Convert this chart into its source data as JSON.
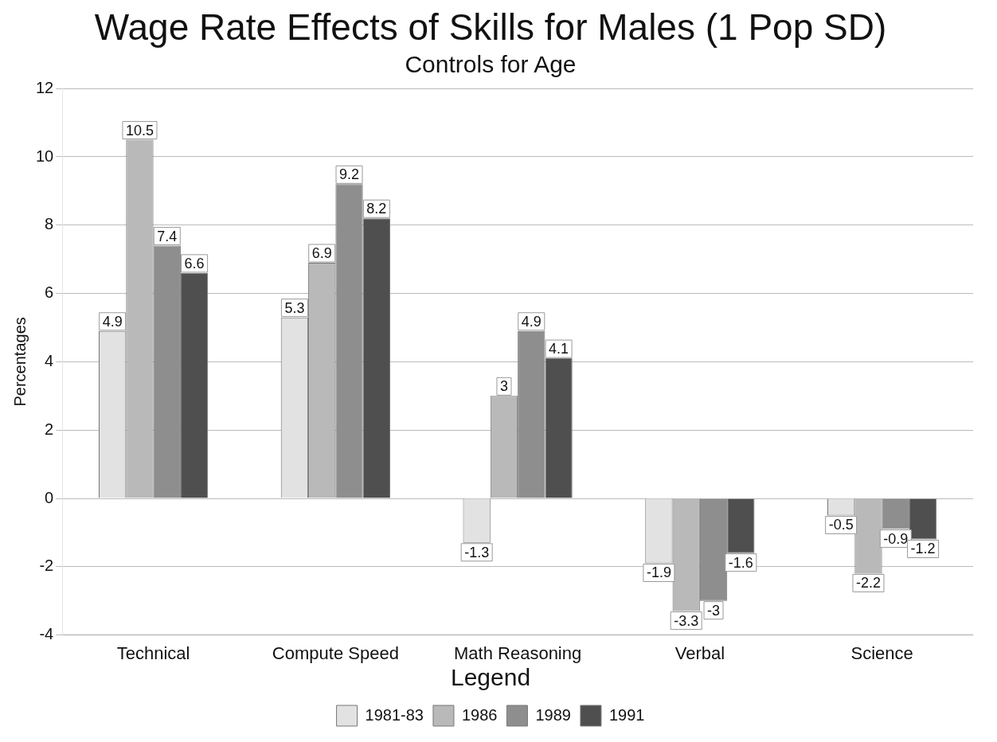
{
  "chart_data": {
    "type": "bar",
    "title": "Wage Rate Effects of Skills for Males (1 Pop SD)",
    "subtitle": "Controls for Age",
    "ylabel": "Percentages",
    "categories": [
      "Technical",
      "Compute Speed",
      "Math Reasoning",
      "Verbal",
      "Science"
    ],
    "series": [
      {
        "name": "1981-83",
        "color": "#e2e2e2",
        "values": [
          4.9,
          5.3,
          -1.3,
          -1.9,
          -0.5
        ]
      },
      {
        "name": "1986",
        "color": "#b9b9b9",
        "values": [
          10.5,
          6.9,
          3,
          -3.3,
          -2.2
        ]
      },
      {
        "name": "1989",
        "color": "#8e8e8e",
        "values": [
          7.4,
          9.2,
          4.9,
          -3,
          -0.9
        ]
      },
      {
        "name": "1991",
        "color": "#4f4f4f",
        "values": [
          6.6,
          8.2,
          4.1,
          -1.6,
          -1.2
        ]
      }
    ],
    "ylim": [
      -4,
      12
    ],
    "yticks": [
      -4,
      -2,
      0,
      2,
      4,
      6,
      8,
      10,
      12
    ],
    "grid": "y",
    "legend": "bottom",
    "legend_title": "Legend",
    "data_labels": true
  }
}
